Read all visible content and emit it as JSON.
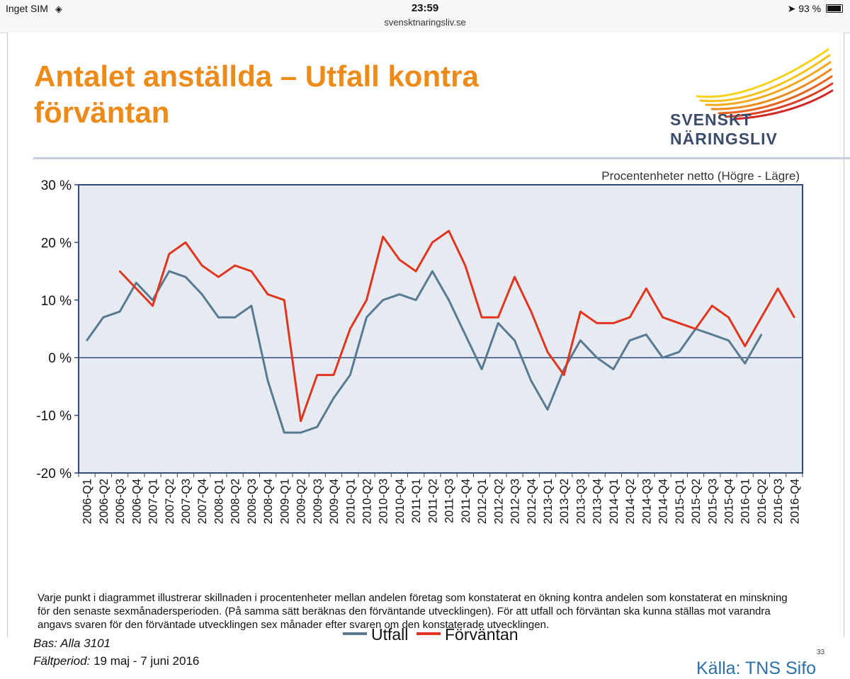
{
  "status_bar": {
    "carrier": "Inget SIM",
    "time": "23:59",
    "url": "svensktnaringsliv.se",
    "battery": "93 %",
    "battery_level": 0.93
  },
  "slide": {
    "title": "Antalet anställda – Utfall kontra förväntan",
    "logo_text": "SVENSKT NÄRINGSLIV",
    "footnote": "Varje punkt i diagrammet illustrerar skillnaden i procentenheter mellan andelen företag som konstaterat en ökning kontra andelen som konstaterat en minskning för den senaste sexmånadersperioden. (På samma sätt beräknas den förväntande utvecklingen). För att utfall och förväntan ska kunna ställas mot varandra angavs svaren för den förväntade utvecklingen sex månader efter svaren om den konstaterade utvecklingen.",
    "bas": "Bas: Alla 3101",
    "faltperiod_label": "Fältperiod:",
    "faltperiod_value": "19 maj - 7 juni 2016",
    "page_number": "33",
    "source": "Källa: TNS Sifo"
  },
  "chart_data": {
    "type": "line",
    "subtitle": "Procentenheter netto (Högre - Lägre)",
    "ylim": [
      -20,
      30
    ],
    "yticks": [
      -20,
      -10,
      0,
      10,
      20,
      30
    ],
    "ytick_labels": [
      "-20 %",
      "-10 %",
      "0 %",
      "10 %",
      "20 %",
      "30 %"
    ],
    "grid": false,
    "zero_line": true,
    "legend_position": "bottom",
    "categories": [
      "2006-Q1",
      "2006-Q2",
      "2006-Q3",
      "2006-Q4",
      "2007-Q1",
      "2007-Q2",
      "2007-Q3",
      "2007-Q4",
      "2008-Q1",
      "2008-Q2",
      "2008-Q3",
      "2008-Q4",
      "2009-Q1",
      "2009-Q2",
      "2009-Q3",
      "2009-Q4",
      "2010-Q1",
      "2010-Q2",
      "2010-Q3",
      "2010-Q4",
      "2011-Q1",
      "2011-Q2",
      "2011-Q3",
      "2011-Q4",
      "2012-Q1",
      "2012-Q2",
      "2012-Q3",
      "2012-Q4",
      "2013-Q1",
      "2013-Q2",
      "2013-Q3",
      "2013-Q4",
      "2014-Q1",
      "2014-Q2",
      "2014-Q3",
      "2014-Q4",
      "2015-Q1",
      "2015-Q2",
      "2015-Q3",
      "2015-Q4",
      "2016-Q1",
      "2016-Q2",
      "2016-Q3",
      "2016-Q4"
    ],
    "series": [
      {
        "name": "Utfall",
        "color": "#5a7a92",
        "values": [
          3,
          7,
          8,
          13,
          10,
          15,
          14,
          11,
          7,
          7,
          9,
          -4,
          -13,
          -13,
          -12,
          -7,
          -3,
          7,
          10,
          11,
          10,
          15,
          10,
          4,
          -2,
          6,
          3,
          -4,
          -9,
          -2,
          3,
          0,
          -2,
          3,
          4,
          0,
          1,
          5,
          4,
          3,
          -1,
          4,
          null,
          null
        ]
      },
      {
        "name": "Förväntan",
        "color": "#e2351f",
        "values": [
          null,
          null,
          15,
          12,
          9,
          18,
          20,
          16,
          14,
          16,
          15,
          11,
          10,
          -11,
          -3,
          -3,
          5,
          10,
          21,
          17,
          15,
          20,
          22,
          16,
          7,
          7,
          14,
          8,
          1,
          -3,
          8,
          6,
          6,
          7,
          12,
          7,
          6,
          5,
          9,
          7,
          2,
          7,
          12,
          7
        ]
      }
    ]
  }
}
